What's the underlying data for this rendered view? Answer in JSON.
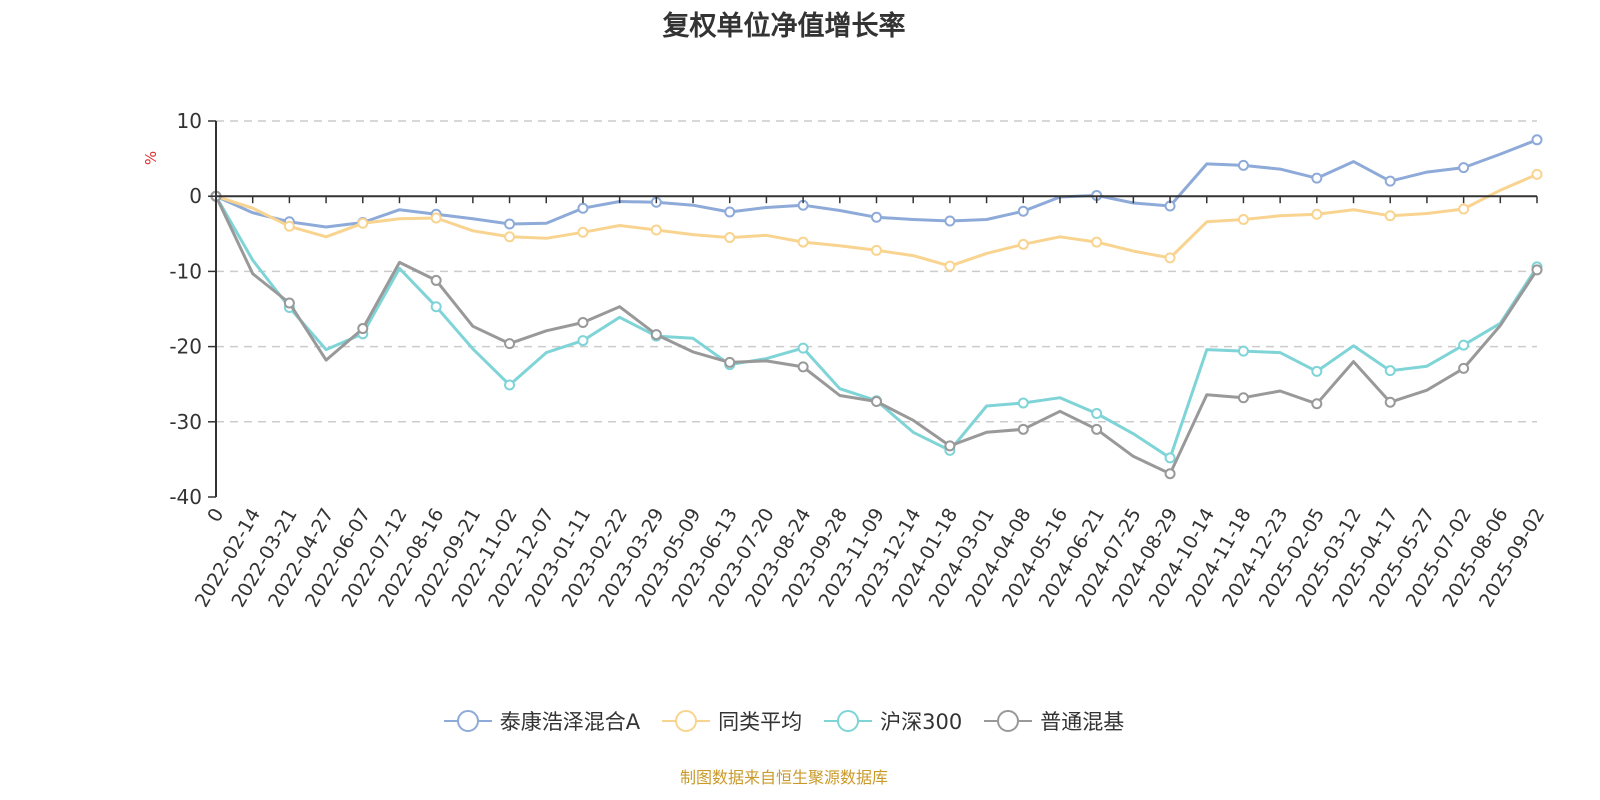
{
  "chart_data": {
    "type": "line",
    "title": "复权单位净值增长率",
    "ylabel": "%",
    "ylim": [
      -40,
      10
    ],
    "yticks": [
      10,
      0,
      -10,
      -20,
      -30,
      -40
    ],
    "grid": "horizontal dashed",
    "legend_position": "bottom",
    "x_tick_labels": [
      "0",
      "2022-02-14",
      "2022-03-21",
      "2022-04-27",
      "2022-06-07",
      "2022-07-12",
      "2022-08-16",
      "2022-09-21",
      "2022-11-02",
      "2022-12-07",
      "2023-01-11",
      "2023-02-22",
      "2023-03-29",
      "2023-05-09",
      "2023-06-13",
      "2023-07-20",
      "2023-08-24",
      "2023-09-28",
      "2023-11-09",
      "2023-12-14",
      "2024-01-18",
      "2024-03-01",
      "2024-04-08",
      "2024-05-16",
      "2024-06-21",
      "2024-07-25",
      "2024-08-29",
      "2024-10-14",
      "2024-11-18",
      "2024-12-23",
      "2025-02-05",
      "2025-03-12",
      "2025-04-17",
      "2025-05-27",
      "2025-07-02",
      "2025-08-06",
      "2025-09-02"
    ],
    "series": [
      {
        "name": "泰康浩泽混合A",
        "color": "#8eaad8",
        "values": [
          0,
          -2.2,
          -3.4,
          -4.1,
          -3.5,
          -1.8,
          -2.4,
          -3.0,
          -3.7,
          -3.6,
          -1.6,
          -0.7,
          -0.8,
          -1.2,
          -2.1,
          -1.5,
          -1.2,
          -1.9,
          -2.8,
          -3.1,
          -3.3,
          -3.1,
          -2.0,
          -0.1,
          0.1,
          -0.9,
          -1.3,
          4.3,
          4.1,
          3.6,
          2.4,
          4.6,
          2.0,
          3.2,
          3.8,
          5.6,
          7.5
        ]
      },
      {
        "name": "同类平均",
        "color": "#f8d490",
        "values": [
          0,
          -1.6,
          -4.0,
          -5.4,
          -3.6,
          -3.0,
          -2.9,
          -4.6,
          -5.4,
          -5.6,
          -4.8,
          -3.9,
          -4.5,
          -5.1,
          -5.5,
          -5.2,
          -6.1,
          -6.6,
          -7.2,
          -7.9,
          -9.3,
          -7.6,
          -6.4,
          -5.4,
          -6.1,
          -7.3,
          -8.2,
          -3.4,
          -3.1,
          -2.6,
          -2.4,
          -1.8,
          -2.6,
          -2.3,
          -1.7,
          0.8,
          2.9
        ]
      },
      {
        "name": "沪深300",
        "color": "#7fd4d8",
        "values": [
          0,
          -8.5,
          -14.8,
          -20.4,
          -18.3,
          -9.6,
          -14.7,
          -20.3,
          -25.1,
          -20.8,
          -19.2,
          -16.1,
          -18.6,
          -18.9,
          -22.4,
          -21.6,
          -20.2,
          -25.6,
          -27.2,
          -31.4,
          -33.8,
          -27.9,
          -27.5,
          -26.8,
          -28.9,
          -31.6,
          -34.8,
          -20.4,
          -20.6,
          -20.8,
          -23.3,
          -19.9,
          -23.2,
          -22.6,
          -19.8,
          -16.9,
          -9.4
        ]
      },
      {
        "name": "普通混基",
        "color": "#999999",
        "values": [
          0,
          -10.3,
          -14.2,
          -21.8,
          -17.6,
          -8.8,
          -11.2,
          -17.3,
          -19.6,
          -17.9,
          -16.8,
          -14.7,
          -18.4,
          -20.7,
          -22.1,
          -21.9,
          -22.7,
          -26.5,
          -27.3,
          -29.8,
          -33.2,
          -31.4,
          -31.0,
          -28.6,
          -31.0,
          -34.6,
          -36.9,
          -26.4,
          -26.8,
          -25.9,
          -27.6,
          -22.0,
          -27.4,
          -25.8,
          -22.9,
          -17.2,
          -9.8
        ]
      }
    ]
  },
  "source_note": "制图数据来自恒生聚源数据库"
}
